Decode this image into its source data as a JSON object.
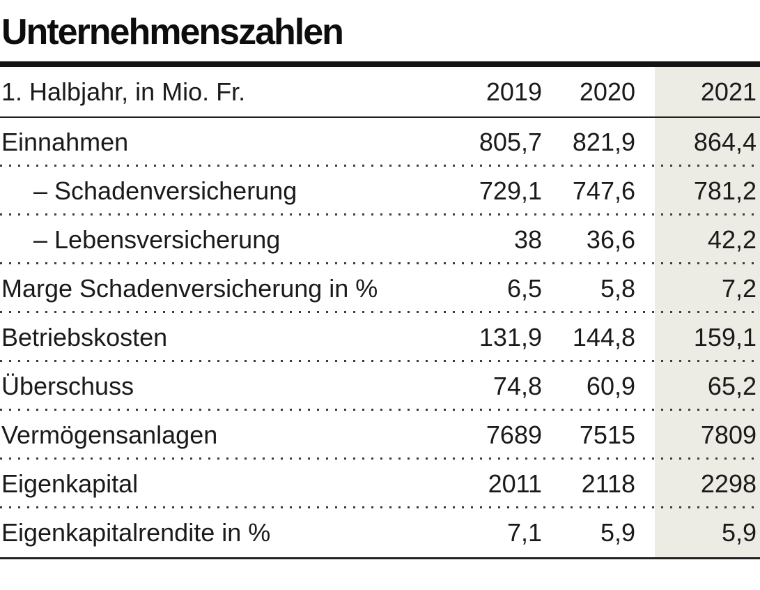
{
  "title": "Unternehmenszahlen",
  "table": {
    "header": {
      "label": "1. Halbjahr, in Mio. Fr.",
      "years": [
        "2019",
        "2020",
        "2021"
      ]
    },
    "rows": [
      {
        "label": "Einnahmen",
        "indent": false,
        "values": [
          "805,7",
          "821,9",
          "864,4"
        ]
      },
      {
        "label": "– Schadenversicherung",
        "indent": true,
        "values": [
          "729,1",
          "747,6",
          "781,2"
        ]
      },
      {
        "label": "– Lebensversicherung",
        "indent": true,
        "values": [
          "38",
          "36,6",
          "42,2"
        ]
      },
      {
        "label": "Marge Schadenversicherung in %",
        "indent": false,
        "values": [
          "6,5",
          "5,8",
          "7,2"
        ]
      },
      {
        "label": "Betriebskosten",
        "indent": false,
        "values": [
          "131,9",
          "144,8",
          "159,1"
        ]
      },
      {
        "label": "Überschuss",
        "indent": false,
        "values": [
          "74,8",
          "60,9",
          "65,2"
        ]
      },
      {
        "label": "Vermögensanlagen",
        "indent": false,
        "values": [
          "7689",
          "7515",
          "7809"
        ]
      },
      {
        "label": "Eigenkapital",
        "indent": false,
        "values": [
          "2011",
          "2118",
          "2298"
        ]
      },
      {
        "label": "Eigenkapitalrendite in %",
        "indent": false,
        "values": [
          "7,1",
          "5,9",
          "5,9"
        ]
      }
    ]
  },
  "colors": {
    "highlight": "#ECEBE4",
    "rule": "#141414",
    "text": "#1a1a1a",
    "dots": "#3b3b3b"
  },
  "chart_data": {
    "type": "table",
    "title": "Unternehmenszahlen",
    "subtitle": "1. Halbjahr, in Mio. Fr.",
    "columns": [
      "2019",
      "2020",
      "2021"
    ],
    "row_labels": [
      "Einnahmen",
      "– Schadenversicherung",
      "– Lebensversicherung",
      "Marge Schadenversicherung in %",
      "Betriebskosten",
      "Überschuss",
      "Vermögensanlagen",
      "Eigenkapital",
      "Eigenkapitalrendite in %"
    ],
    "series": [
      {
        "name": "2019",
        "values": [
          805.7,
          729.1,
          38,
          6.5,
          131.9,
          74.8,
          7689,
          2011,
          7.1
        ]
      },
      {
        "name": "2020",
        "values": [
          821.9,
          747.6,
          36.6,
          5.8,
          144.8,
          60.9,
          7515,
          2118,
          5.9
        ]
      },
      {
        "name": "2021",
        "values": [
          864.4,
          781.2,
          42.2,
          7.2,
          159.1,
          65.2,
          7809,
          2298,
          5.9
        ]
      }
    ],
    "highlight_column": "2021",
    "layout": {
      "row_separator": "dotted",
      "header_separator": "solid",
      "bottom_rule": "solid"
    }
  }
}
